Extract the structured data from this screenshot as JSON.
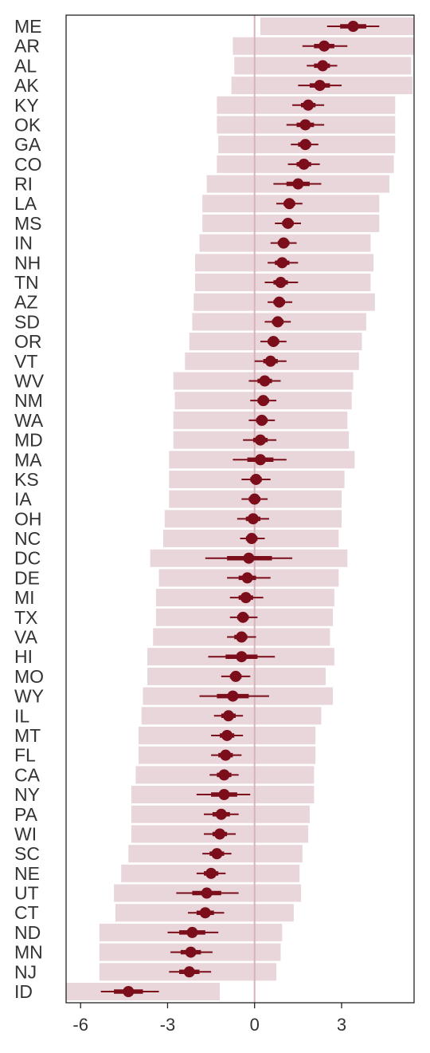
{
  "chart_data": {
    "type": "forest",
    "xlim": [
      -6.5,
      5.5
    ],
    "xticks": [
      -6,
      -3,
      0,
      3
    ],
    "xtick_labels": [
      "-6",
      "-3",
      "0",
      "3"
    ],
    "reference_line_x": 0,
    "grid": false,
    "colors": {
      "point": "#7b0e1a",
      "interval_band": "#e8d6da",
      "reference_line": "#d9b3ba",
      "axis": "#222222"
    },
    "rows": [
      {
        "label": "ME",
        "estimate": 3.4,
        "inner": [
          2.95,
          3.85
        ],
        "outer": [
          2.5,
          4.3
        ],
        "band": [
          0.2,
          5.5
        ]
      },
      {
        "label": "AR",
        "estimate": 2.4,
        "inner": [
          2.05,
          2.75
        ],
        "outer": [
          1.65,
          3.2
        ],
        "band": [
          -0.75,
          5.5
        ]
      },
      {
        "label": "AL",
        "estimate": 2.35,
        "inner": [
          2.05,
          2.6
        ],
        "outer": [
          1.8,
          2.85
        ],
        "band": [
          -0.7,
          5.4
        ]
      },
      {
        "label": "AK",
        "estimate": 2.25,
        "inner": [
          1.9,
          2.6
        ],
        "outer": [
          1.5,
          3.0
        ],
        "band": [
          -0.8,
          5.45
        ]
      },
      {
        "label": "KY",
        "estimate": 1.85,
        "inner": [
          1.6,
          2.1
        ],
        "outer": [
          1.3,
          2.4
        ],
        "band": [
          -1.3,
          4.85
        ]
      },
      {
        "label": "OK",
        "estimate": 1.75,
        "inner": [
          1.45,
          2.05
        ],
        "outer": [
          1.1,
          2.4
        ],
        "band": [
          -1.3,
          4.85
        ]
      },
      {
        "label": "GA",
        "estimate": 1.75,
        "inner": [
          1.5,
          1.95
        ],
        "outer": [
          1.25,
          2.2
        ],
        "band": [
          -1.25,
          4.85
        ]
      },
      {
        "label": "CO",
        "estimate": 1.7,
        "inner": [
          1.45,
          1.95
        ],
        "outer": [
          1.15,
          2.25
        ],
        "band": [
          -1.3,
          4.8
        ]
      },
      {
        "label": "RI",
        "estimate": 1.5,
        "inner": [
          1.1,
          1.9
        ],
        "outer": [
          0.65,
          2.3
        ],
        "band": [
          -1.65,
          4.65
        ]
      },
      {
        "label": "LA",
        "estimate": 1.2,
        "inner": [
          1.0,
          1.4
        ],
        "outer": [
          0.75,
          1.65
        ],
        "band": [
          -1.8,
          4.3
        ]
      },
      {
        "label": "MS",
        "estimate": 1.15,
        "inner": [
          0.95,
          1.35
        ],
        "outer": [
          0.7,
          1.6
        ],
        "band": [
          -1.8,
          4.3
        ]
      },
      {
        "label": "IN",
        "estimate": 1.0,
        "inner": [
          0.8,
          1.2
        ],
        "outer": [
          0.55,
          1.45
        ],
        "band": [
          -1.9,
          4.0
        ]
      },
      {
        "label": "NH",
        "estimate": 0.95,
        "inner": [
          0.7,
          1.2
        ],
        "outer": [
          0.45,
          1.5
        ],
        "band": [
          -2.05,
          4.1
        ]
      },
      {
        "label": "TN",
        "estimate": 0.9,
        "inner": [
          0.65,
          1.15
        ],
        "outer": [
          0.35,
          1.5
        ],
        "band": [
          -2.05,
          4.0
        ]
      },
      {
        "label": "AZ",
        "estimate": 0.85,
        "inner": [
          0.65,
          1.05
        ],
        "outer": [
          0.45,
          1.3
        ],
        "band": [
          -2.1,
          4.15
        ]
      },
      {
        "label": "SD",
        "estimate": 0.8,
        "inner": [
          0.6,
          1.0
        ],
        "outer": [
          0.35,
          1.25
        ],
        "band": [
          -2.15,
          3.85
        ]
      },
      {
        "label": "OR",
        "estimate": 0.65,
        "inner": [
          0.45,
          0.85
        ],
        "outer": [
          0.2,
          1.1
        ],
        "band": [
          -2.25,
          3.7
        ]
      },
      {
        "label": "VT",
        "estimate": 0.55,
        "inner": [
          0.3,
          0.8
        ],
        "outer": [
          0.0,
          1.1
        ],
        "band": [
          -2.4,
          3.6
        ]
      },
      {
        "label": "WV",
        "estimate": 0.35,
        "inner": [
          0.1,
          0.6
        ],
        "outer": [
          -0.2,
          0.9
        ],
        "band": [
          -2.8,
          3.4
        ]
      },
      {
        "label": "NM",
        "estimate": 0.3,
        "inner": [
          0.1,
          0.5
        ],
        "outer": [
          -0.15,
          0.75
        ],
        "band": [
          -2.75,
          3.35
        ]
      },
      {
        "label": "WA",
        "estimate": 0.25,
        "inner": [
          0.05,
          0.45
        ],
        "outer": [
          -0.2,
          0.7
        ],
        "band": [
          -2.8,
          3.2
        ]
      },
      {
        "label": "MD",
        "estimate": 0.2,
        "inner": [
          -0.05,
          0.45
        ],
        "outer": [
          -0.4,
          0.75
        ],
        "band": [
          -2.8,
          3.25
        ]
      },
      {
        "label": "MA",
        "estimate": 0.2,
        "inner": [
          -0.25,
          0.65
        ],
        "outer": [
          -0.75,
          1.1
        ],
        "band": [
          -2.95,
          3.45
        ]
      },
      {
        "label": "KS",
        "estimate": 0.05,
        "inner": [
          -0.15,
          0.25
        ],
        "outer": [
          -0.45,
          0.55
        ],
        "band": [
          -2.95,
          3.1
        ]
      },
      {
        "label": "IA",
        "estimate": 0.0,
        "inner": [
          -0.2,
          0.2
        ],
        "outer": [
          -0.45,
          0.45
        ],
        "band": [
          -2.95,
          3.0
        ]
      },
      {
        "label": "OH",
        "estimate": -0.05,
        "inner": [
          -0.3,
          0.2
        ],
        "outer": [
          -0.6,
          0.5
        ],
        "band": [
          -3.1,
          3.0
        ]
      },
      {
        "label": "NC",
        "estimate": -0.1,
        "inner": [
          -0.3,
          0.1
        ],
        "outer": [
          -0.5,
          0.35
        ],
        "band": [
          -3.15,
          2.9
        ]
      },
      {
        "label": "DC",
        "estimate": -0.2,
        "inner": [
          -0.95,
          0.6
        ],
        "outer": [
          -1.7,
          1.3
        ],
        "band": [
          -3.6,
          3.2
        ]
      },
      {
        "label": "DE",
        "estimate": -0.25,
        "inner": [
          -0.55,
          0.05
        ],
        "outer": [
          -0.95,
          0.55
        ],
        "band": [
          -3.3,
          2.9
        ]
      },
      {
        "label": "MI",
        "estimate": -0.3,
        "inner": [
          -0.55,
          -0.05
        ],
        "outer": [
          -0.85,
          0.3
        ],
        "band": [
          -3.4,
          2.75
        ]
      },
      {
        "label": "TX",
        "estimate": -0.4,
        "inner": [
          -0.6,
          -0.2
        ],
        "outer": [
          -0.85,
          0.1
        ],
        "band": [
          -3.4,
          2.7
        ]
      },
      {
        "label": "VA",
        "estimate": -0.45,
        "inner": [
          -0.7,
          -0.25
        ],
        "outer": [
          -0.95,
          0.05
        ],
        "band": [
          -3.5,
          2.6
        ]
      },
      {
        "label": "HI",
        "estimate": -0.45,
        "inner": [
          -1.0,
          0.1
        ],
        "outer": [
          -1.6,
          0.7
        ],
        "band": [
          -3.7,
          2.75
        ]
      },
      {
        "label": "MO",
        "estimate": -0.65,
        "inner": [
          -0.85,
          -0.45
        ],
        "outer": [
          -1.15,
          -0.15
        ],
        "band": [
          -3.7,
          2.45
        ]
      },
      {
        "label": "WY",
        "estimate": -0.75,
        "inner": [
          -1.3,
          -0.2
        ],
        "outer": [
          -1.9,
          0.5
        ],
        "band": [
          -3.85,
          2.7
        ]
      },
      {
        "label": "IL",
        "estimate": -0.9,
        "inner": [
          -1.15,
          -0.65
        ],
        "outer": [
          -1.4,
          -0.4
        ],
        "band": [
          -3.9,
          2.3
        ]
      },
      {
        "label": "MT",
        "estimate": -0.95,
        "inner": [
          -1.2,
          -0.7
        ],
        "outer": [
          -1.5,
          -0.4
        ],
        "band": [
          -4.0,
          2.1
        ]
      },
      {
        "label": "FL",
        "estimate": -1.0,
        "inner": [
          -1.25,
          -0.75
        ],
        "outer": [
          -1.5,
          -0.45
        ],
        "band": [
          -4.0,
          2.1
        ]
      },
      {
        "label": "CA",
        "estimate": -1.05,
        "inner": [
          -1.3,
          -0.8
        ],
        "outer": [
          -1.55,
          -0.55
        ],
        "band": [
          -4.1,
          2.05
        ]
      },
      {
        "label": "NY",
        "estimate": -1.05,
        "inner": [
          -1.5,
          -0.6
        ],
        "outer": [
          -2.0,
          -0.15
        ],
        "band": [
          -4.25,
          2.05
        ]
      },
      {
        "label": "PA",
        "estimate": -1.15,
        "inner": [
          -1.45,
          -0.85
        ],
        "outer": [
          -1.75,
          -0.55
        ],
        "band": [
          -4.25,
          1.9
        ]
      },
      {
        "label": "WI",
        "estimate": -1.2,
        "inner": [
          -1.45,
          -0.95
        ],
        "outer": [
          -1.75,
          -0.65
        ],
        "band": [
          -4.25,
          1.85
        ]
      },
      {
        "label": "SC",
        "estimate": -1.3,
        "inner": [
          -1.55,
          -1.05
        ],
        "outer": [
          -1.8,
          -0.8
        ],
        "band": [
          -4.35,
          1.65
        ]
      },
      {
        "label": "NE",
        "estimate": -1.5,
        "inner": [
          -1.75,
          -1.25
        ],
        "outer": [
          -2.0,
          -1.0
        ],
        "band": [
          -4.6,
          1.55
        ]
      },
      {
        "label": "UT",
        "estimate": -1.65,
        "inner": [
          -2.15,
          -1.15
        ],
        "outer": [
          -2.7,
          -0.55
        ],
        "band": [
          -4.85,
          1.6
        ]
      },
      {
        "label": "CT",
        "estimate": -1.7,
        "inner": [
          -2.0,
          -1.4
        ],
        "outer": [
          -2.3,
          -1.05
        ],
        "band": [
          -4.8,
          1.35
        ]
      },
      {
        "label": "ND",
        "estimate": -2.15,
        "inner": [
          -2.6,
          -1.7
        ],
        "outer": [
          -3.0,
          -1.25
        ],
        "band": [
          -5.35,
          0.95
        ]
      },
      {
        "label": "MN",
        "estimate": -2.2,
        "inner": [
          -2.55,
          -1.85
        ],
        "outer": [
          -2.9,
          -1.45
        ],
        "band": [
          -5.35,
          0.9
        ]
      },
      {
        "label": "NJ",
        "estimate": -2.25,
        "inner": [
          -2.6,
          -1.9
        ],
        "outer": [
          -2.95,
          -1.5
        ],
        "band": [
          -5.35,
          0.75
        ]
      },
      {
        "label": "ID",
        "estimate": -4.35,
        "inner": [
          -4.85,
          -3.85
        ],
        "outer": [
          -5.3,
          -3.3
        ],
        "band": [
          -6.5,
          -1.2
        ]
      }
    ]
  }
}
